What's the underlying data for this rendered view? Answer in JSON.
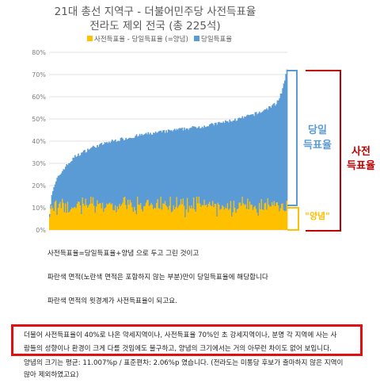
{
  "chart_data": {
    "type": "area",
    "title": "21대 총선 지역구 - 더불어민주당 사전득표율",
    "subtitle": "전라도 제외 전국 (총 225석)",
    "series": [
      {
        "name": "사전득표율 - 당일득표율 (=양념)",
        "color": "#ffc000",
        "mean": 11.007,
        "sd": 2.06
      },
      {
        "name": "당일득표율",
        "color": "#5b9bd5"
      }
    ],
    "n_points": 225,
    "total_envelope": [
      [
        1,
        8
      ],
      [
        3,
        16
      ],
      [
        8,
        23
      ],
      [
        15,
        28
      ],
      [
        25,
        33
      ],
      [
        40,
        37
      ],
      [
        60,
        40
      ],
      [
        90,
        43
      ],
      [
        120,
        45
      ],
      [
        150,
        47
      ],
      [
        180,
        50
      ],
      [
        200,
        53
      ],
      [
        215,
        57
      ],
      [
        220,
        62
      ],
      [
        223,
        67
      ],
      [
        225,
        72
      ]
    ],
    "ylim": [
      0,
      80
    ],
    "y_ticks": [
      "0%",
      "10%",
      "20%",
      "30%",
      "40%",
      "50%",
      "60%",
      "70%",
      "80%"
    ],
    "grid": true,
    "legend": "top"
  },
  "annotations": {
    "blue_label_line1": "당일",
    "blue_label_line2": "득표율",
    "yellow_label": "\"양념\"",
    "red_label_line1": "사전",
    "red_label_line2": "득표율"
  },
  "text": {
    "p1": "사전득표율=당일득표율+양념 으로 두고 그린 것이고",
    "p2": "파란색 면적(노란색 면적은 포함하지 않는 부분)만이 당일득표율에 해당합니다",
    "p3": "파란색 면적의 윗경계가 사전득표율이 되고요.",
    "box1": "더불어 사전득표율이 40%로 나온 약세지역이나, 사전득표율 70%인 초 강세지역이나, 분명 각 지역에 사는 사",
    "box2": "람들의 성향이나 환경이 크게 다를 것임에도 불구하고, 양념의 크기에서는 거의 아무런 차이도 없어 보입니다.",
    "note1": "양념의 크기는 평균: 11.007%p / 표준편차: 2.06%p 였습니다. (전라도는 미통당 후보가 출마하지 않은 지역이",
    "note2": "많아 제외하였고요)"
  }
}
